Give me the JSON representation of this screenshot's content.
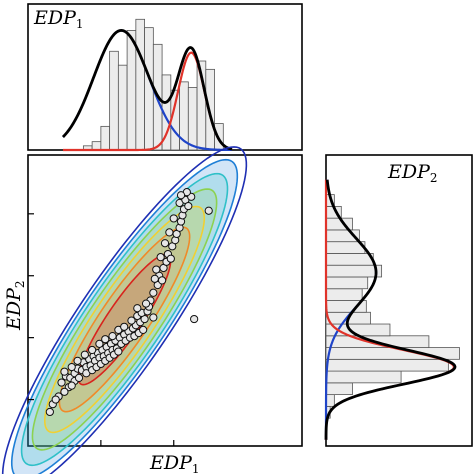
{
  "chart_data": [
    {
      "type": "bar",
      "panel": "top-marginal",
      "title": "EDP1",
      "label": {
        "main": "EDP",
        "sub": "1"
      },
      "x_range": [
        0,
        9.4
      ],
      "ylim": [
        0,
        1.05
      ],
      "hist_counts": [
        0.03,
        0.06,
        0.17,
        0.71,
        0.61,
        0.86,
        0.94,
        0.88,
        0.76,
        0.54,
        0.43,
        0.49,
        0.45,
        0.64,
        0.58,
        0.19
      ],
      "hist_x_start": 1.9,
      "hist_bin_width": 0.3,
      "series": [
        {
          "name": "",
          "color": "#1f44c8",
          "kind": "component",
          "amplitude": 0.86,
          "mean": 3.2,
          "sd": 0.95
        },
        {
          "name": "",
          "color": "#e0332a",
          "kind": "component",
          "amplitude": 0.7,
          "mean": 5.6,
          "sd": 0.45
        },
        {
          "name": "",
          "color": "#000000",
          "kind": "mixture"
        }
      ]
    },
    {
      "type": "scatter",
      "panel": "joint",
      "xlabel": {
        "main": "EDP",
        "sub": "1"
      },
      "ylabel": {
        "main": "EDP",
        "sub": "2"
      },
      "xlim": [
        0,
        9.4
      ],
      "ylim": [
        0,
        9.4
      ],
      "xticks": [
        2.5,
        5.0
      ],
      "yticks": [
        1.5,
        3.5,
        5.5,
        7.5
      ],
      "points": [
        [
          1.15,
          2.05
        ],
        [
          1.3,
          2.25
        ],
        [
          1.45,
          2.2
        ],
        [
          1.6,
          2.35
        ],
        [
          1.7,
          2.5
        ],
        [
          1.85,
          2.45
        ],
        [
          1.9,
          2.7
        ],
        [
          2.0,
          2.55
        ],
        [
          2.1,
          2.8
        ],
        [
          2.15,
          2.6
        ],
        [
          2.25,
          2.9
        ],
        [
          2.3,
          2.75
        ],
        [
          2.4,
          3.0
        ],
        [
          2.45,
          2.85
        ],
        [
          2.55,
          3.1
        ],
        [
          2.6,
          2.9
        ],
        [
          2.7,
          3.2
        ],
        [
          2.75,
          3.0
        ],
        [
          2.85,
          3.3
        ],
        [
          2.9,
          3.1
        ],
        [
          3.0,
          3.4
        ],
        [
          3.05,
          3.15
        ],
        [
          3.15,
          3.5
        ],
        [
          3.2,
          3.3
        ],
        [
          3.3,
          3.6
        ],
        [
          3.35,
          3.4
        ],
        [
          3.45,
          3.7
        ],
        [
          3.5,
          3.5
        ],
        [
          3.6,
          3.8
        ],
        [
          3.65,
          3.55
        ],
        [
          3.7,
          3.9
        ],
        [
          3.8,
          3.65
        ],
        [
          3.85,
          4.0
        ],
        [
          3.95,
          3.75
        ],
        [
          4.0,
          4.1
        ],
        [
          1.4,
          1.9
        ],
        [
          1.6,
          2.1
        ],
        [
          1.75,
          2.2
        ],
        [
          2.0,
          2.35
        ],
        [
          2.2,
          2.45
        ],
        [
          2.35,
          2.55
        ],
        [
          2.5,
          2.65
        ],
        [
          2.65,
          2.75
        ],
        [
          2.8,
          2.85
        ],
        [
          2.95,
          2.95
        ],
        [
          3.1,
          3.05
        ],
        [
          1.25,
          2.4
        ],
        [
          1.5,
          2.55
        ],
        [
          1.7,
          2.75
        ],
        [
          1.95,
          2.95
        ],
        [
          2.2,
          3.1
        ],
        [
          2.45,
          3.3
        ],
        [
          2.65,
          3.45
        ],
        [
          2.9,
          3.55
        ],
        [
          3.1,
          3.75
        ],
        [
          3.3,
          3.85
        ],
        [
          3.55,
          4.05
        ],
        [
          3.75,
          4.2
        ],
        [
          3.9,
          4.3
        ],
        [
          4.1,
          4.35
        ],
        [
          4.2,
          4.7
        ],
        [
          4.3,
          4.95
        ],
        [
          4.45,
          5.2
        ],
        [
          4.5,
          5.5
        ],
        [
          4.6,
          5.35
        ],
        [
          4.65,
          5.75
        ],
        [
          4.75,
          5.95
        ],
        [
          4.8,
          6.2
        ],
        [
          4.9,
          6.05
        ],
        [
          4.95,
          6.45
        ],
        [
          5.05,
          6.65
        ],
        [
          5.1,
          6.85
        ],
        [
          5.2,
          7.05
        ],
        [
          5.25,
          7.25
        ],
        [
          5.3,
          7.45
        ],
        [
          5.35,
          7.65
        ],
        [
          5.2,
          7.85
        ],
        [
          5.4,
          7.95
        ],
        [
          5.5,
          7.75
        ],
        [
          5.6,
          8.05
        ],
        [
          5.45,
          8.2
        ],
        [
          5.25,
          8.1
        ],
        [
          5.0,
          7.35
        ],
        [
          4.85,
          6.9
        ],
        [
          4.7,
          6.55
        ],
        [
          4.55,
          6.1
        ],
        [
          4.4,
          5.7
        ],
        [
          4.35,
          5.4
        ],
        [
          5.7,
          4.1
        ],
        [
          6.2,
          7.6
        ],
        [
          0.75,
          1.1
        ],
        [
          0.85,
          1.35
        ],
        [
          1.05,
          1.6
        ],
        [
          1.25,
          1.75
        ],
        [
          0.95,
          1.5
        ],
        [
          1.5,
          1.95
        ],
        [
          4.15,
          4.5
        ],
        [
          4.05,
          4.6
        ],
        [
          3.75,
          4.45
        ],
        [
          4.3,
          4.15
        ]
      ],
      "contour_scale": [
        2.0,
        2.4,
        3.0
      ],
      "colormap": [
        "#1f2fb3",
        "#1f7fd6",
        "#2fc0c8",
        "#8cd250",
        "#f0d033",
        "#f08a28",
        "#d8241d"
      ]
    },
    {
      "type": "bar",
      "panel": "right-marginal",
      "title": "EDP2",
      "label": {
        "main": "EDP",
        "sub": "2"
      },
      "orientation": "horizontal",
      "y_range": [
        0,
        9.4
      ],
      "xlim": [
        0,
        1.05
      ],
      "hist_counts": [
        0.03,
        0.06,
        0.19,
        0.54,
        0.88,
        0.96,
        0.74,
        0.46,
        0.32,
        0.29,
        0.26,
        0.3,
        0.4,
        0.34,
        0.28,
        0.24,
        0.19,
        0.11,
        0.06
      ],
      "hist_y_start": 0.9,
      "hist_bin_width": 0.38,
      "series": [
        {
          "name": "",
          "color": "#1f44c8",
          "kind": "component",
          "amplitude": 0.36,
          "mean": 5.6,
          "sd": 1.1
        },
        {
          "name": "",
          "color": "#e0332a",
          "kind": "component",
          "amplitude": 0.92,
          "mean": 2.55,
          "sd": 0.55
        },
        {
          "name": "",
          "color": "#000000",
          "kind": "mixture"
        }
      ]
    }
  ]
}
